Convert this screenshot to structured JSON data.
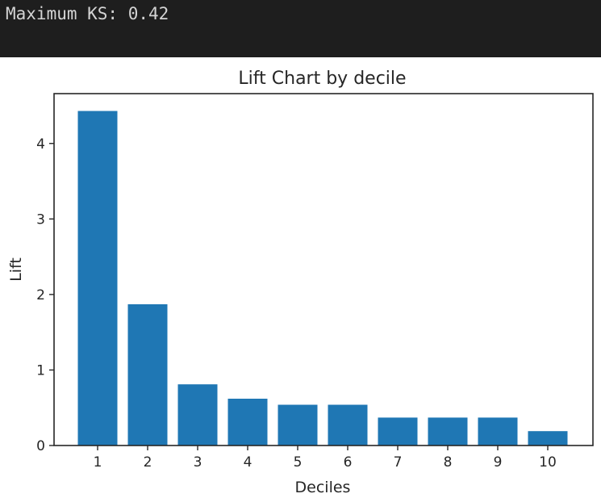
{
  "output": {
    "text": "Maximum KS: 0.42"
  },
  "colors": {
    "output_background": "#1e1e1e",
    "output_text": "#d4d4d4",
    "bar": "#1f77b4",
    "axis": "#262626"
  },
  "chart_data": {
    "type": "bar",
    "title": "Lift Chart by decile",
    "xlabel": "Deciles",
    "ylabel": "Lift",
    "categories": [
      "1",
      "2",
      "3",
      "4",
      "5",
      "6",
      "7",
      "8",
      "9",
      "10"
    ],
    "values": [
      4.43,
      1.87,
      0.81,
      0.62,
      0.54,
      0.54,
      0.37,
      0.37,
      0.37,
      0.19
    ],
    "ylim": [
      0,
      4.66
    ],
    "yticks": [
      "0",
      "1",
      "2",
      "3",
      "4"
    ],
    "grid": false,
    "legend": "none"
  }
}
